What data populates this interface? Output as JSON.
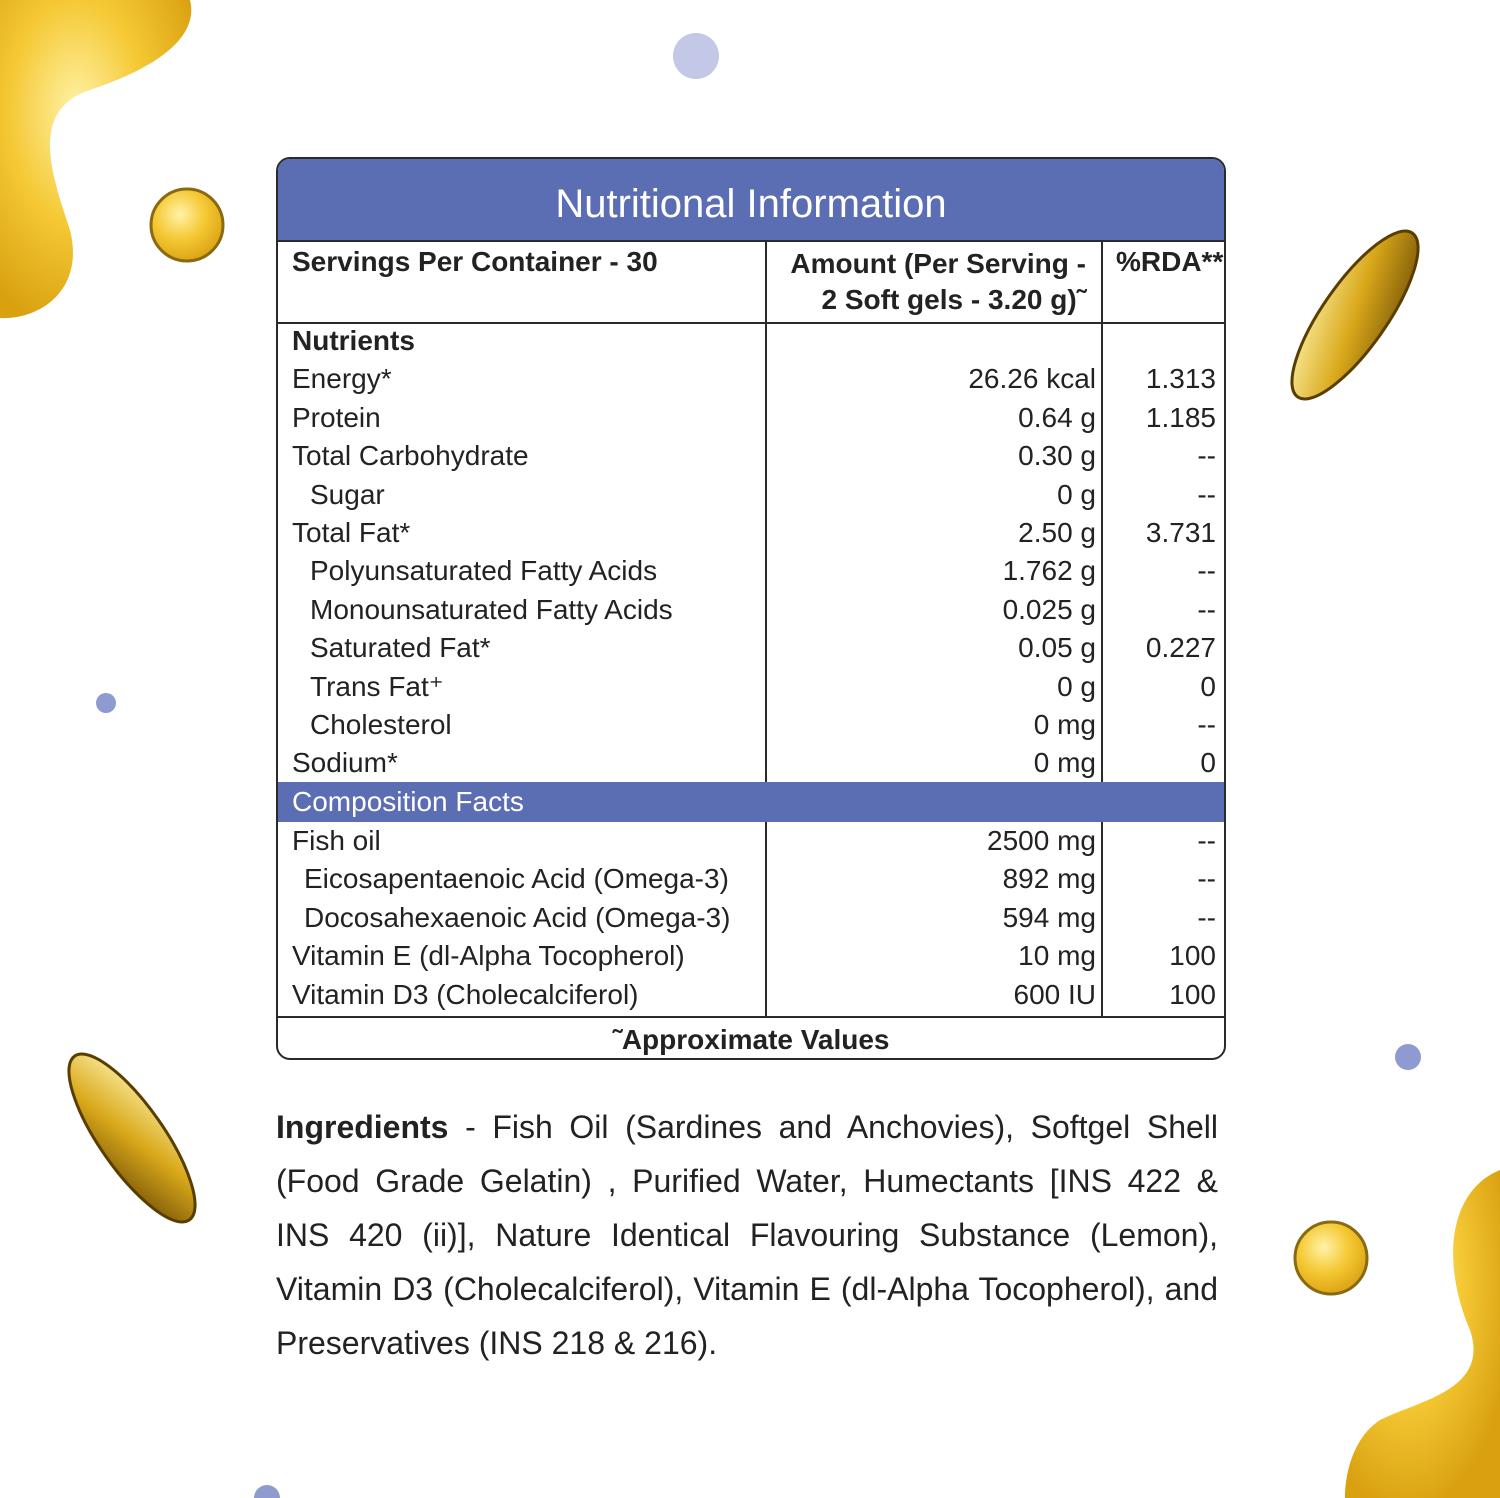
{
  "title": "Nutritional Information",
  "header": {
    "servings": "Servings Per Container - 30",
    "amount": "Amount (Per Serving -",
    "amount_line2": "2 Soft gels - 3.20 g)˜",
    "rda": "%RDA**"
  },
  "nutrients": [
    {
      "name": "Nutrients",
      "amount": "",
      "rda": "",
      "bold": true,
      "indent": 0
    },
    {
      "name": "Energy*",
      "amount": "26.26 kcal",
      "rda": "1.313",
      "indent": 0
    },
    {
      "name": "Protein",
      "amount": "0.64 g",
      "rda": "1.185",
      "indent": 0
    },
    {
      "name": "Total Carbohydrate",
      "amount": "0.30 g",
      "rda": "--",
      "indent": 0
    },
    {
      "name": "Sugar",
      "amount": "0 g",
      "rda": "--",
      "indent": 1
    },
    {
      "name": "Total Fat*",
      "amount": "2.50 g",
      "rda": "3.731",
      "indent": 0
    },
    {
      "name": "Polyunsaturated Fatty Acids",
      "amount": "1.762 g",
      "rda": "--",
      "indent": 1
    },
    {
      "name": "Monounsaturated Fatty Acids",
      "amount": "0.025 g",
      "rda": "--",
      "indent": 1
    },
    {
      "name": "Saturated Fat*",
      "amount": "0.05 g",
      "rda": "0.227",
      "indent": 1
    },
    {
      "name": "Trans Fat⁺",
      "amount": "0 g",
      "rda": "0",
      "indent": 1
    },
    {
      "name": "Cholesterol",
      "amount": "0 mg",
      "rda": "--",
      "indent": 1
    },
    {
      "name": "Sodium*",
      "amount": "0 mg",
      "rda": "0",
      "indent": 0
    }
  ],
  "composition_title": "Composition Facts",
  "composition": [
    {
      "name": "Fish oil",
      "amount": "2500 mg",
      "rda": "--",
      "indent": 0
    },
    {
      "name": "Eicosapentaenoic Acid (Omega-3)",
      "amount": "892 mg",
      "rda": "--",
      "indent": 2
    },
    {
      "name": "Docosahexaenoic Acid  (Omega-3)",
      "amount": "594 mg",
      "rda": "--",
      "indent": 2
    },
    {
      "name": "Vitamin E (dl-Alpha Tocopherol)",
      "amount": "10 mg",
      "rda": "100",
      "indent": 0
    },
    {
      "name": "Vitamin D3 (Cholecalciferol)",
      "amount": "600 IU",
      "rda": "100",
      "indent": 0
    }
  ],
  "footnote": "˜Approximate Values",
  "ingredients": {
    "label": "Ingredients",
    "text": " -   Fish Oil (Sardines and Anchovies), Softgel Shell (Food Grade Gelatin) , Purified Water, Humectants [INS 422 & INS 420 (ii)], Nature Identical Flavouring Substance (Lemon), Vitamin D3 (Cholecalciferol), Vitamin E (dl-Alpha Tocopherol), and Preservatives (INS 218 & 216)."
  },
  "colors": {
    "accent": "#5b6db3",
    "dot": "#8f9bd0",
    "oil": "#f2c12e"
  }
}
